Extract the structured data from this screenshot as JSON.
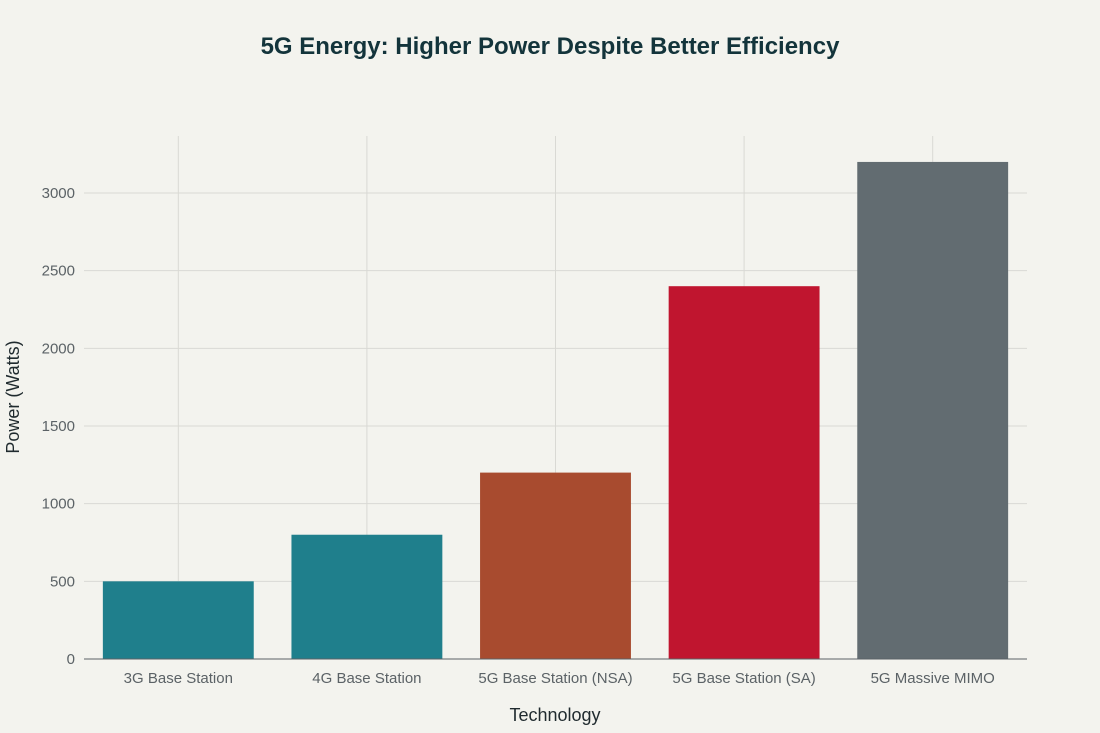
{
  "chart_data": {
    "type": "bar",
    "title": "5G Energy: Higher Power Despite Better Efficiency",
    "xlabel": "Technology",
    "ylabel": "Power (Watts)",
    "categories": [
      "3G Base Station",
      "4G Base Station",
      "5G Base Station (NSA)",
      "5G Base Station (SA)",
      "5G Massive MIMO"
    ],
    "values": [
      500,
      800,
      1200,
      2400,
      3200
    ],
    "colors": [
      "#1f7f8c",
      "#1f7f8c",
      "#a84b2f",
      "#c0152f",
      "#626c71"
    ],
    "yticks": [
      0,
      500,
      1000,
      1500,
      2000,
      2500,
      3000
    ],
    "ylim": [
      0,
      3360
    ],
    "grid": true,
    "legend": "none"
  }
}
